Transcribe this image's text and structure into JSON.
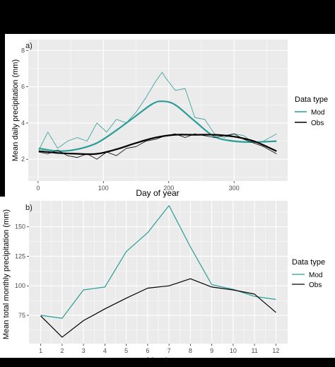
{
  "colors": {
    "mod": "#2a9d96",
    "obs": "#000000",
    "panel_bg": "#ebebeb",
    "grid_major": "#ffffff",
    "frame": "#000000"
  },
  "chart_data": [
    {
      "type": "line",
      "panel_label": "a)",
      "xlabel": "Day of year",
      "ylabel": "Mean daily precipitation (mm)",
      "xlim": [
        -15,
        382
      ],
      "ylim": [
        0.8,
        8.6
      ],
      "x_ticks": [
        0,
        100,
        200,
        300
      ],
      "y_ticks": [
        2,
        4,
        6,
        8
      ],
      "grid": true,
      "legend": {
        "title": "Data type",
        "placement": "right",
        "entries": [
          "Mod",
          "Obs"
        ]
      },
      "series": [
        {
          "name": "Mod",
          "x": [
            1,
            15,
            30,
            45,
            60,
            75,
            90,
            105,
            120,
            135,
            150,
            165,
            180,
            190,
            195,
            210,
            225,
            240,
            255,
            270,
            285,
            300,
            315,
            330,
            345,
            365
          ],
          "values": [
            2.5,
            3.5,
            2.6,
            3.0,
            3.2,
            3.0,
            4.0,
            3.5,
            4.2,
            4.0,
            4.6,
            5.4,
            6.3,
            6.8,
            6.5,
            5.8,
            5.9,
            4.3,
            4.2,
            3.4,
            3.2,
            3.4,
            3.3,
            2.9,
            3.0,
            3.4
          ],
          "smooth": {
            "x": [
              1,
              30,
              60,
              90,
              120,
              150,
              175,
              190,
              210,
              240,
              270,
              300,
              330,
              365
            ],
            "values": [
              2.6,
              2.45,
              2.55,
              2.9,
              3.6,
              4.4,
              5.05,
              5.2,
              5.0,
              4.1,
              3.25,
              3.0,
              2.95,
              3.0
            ]
          }
        },
        {
          "name": "Obs",
          "x": [
            1,
            15,
            30,
            45,
            60,
            75,
            90,
            105,
            120,
            135,
            150,
            165,
            180,
            195,
            210,
            225,
            240,
            255,
            270,
            285,
            300,
            315,
            330,
            345,
            365
          ],
          "values": [
            2.4,
            2.3,
            2.5,
            2.2,
            2.1,
            2.3,
            2.0,
            2.4,
            2.2,
            2.6,
            2.7,
            3.0,
            3.1,
            3.3,
            3.4,
            3.2,
            3.4,
            3.3,
            3.2,
            3.3,
            3.4,
            3.1,
            2.9,
            2.7,
            2.3
          ],
          "smooth": {
            "x": [
              1,
              30,
              60,
              90,
              120,
              150,
              180,
              210,
              240,
              270,
              300,
              330,
              365
            ],
            "values": [
              2.45,
              2.35,
              2.3,
              2.3,
              2.55,
              2.9,
              3.2,
              3.35,
              3.35,
              3.35,
              3.25,
              3.0,
              2.45
            ]
          }
        }
      ]
    },
    {
      "type": "line",
      "panel_label": "b)",
      "xlabel": "Month",
      "ylabel": "Mean total monthly precipitation (mm)",
      "xlim": [
        0.45,
        12.55
      ],
      "ylim": [
        51,
        172
      ],
      "x_ticks": [
        1,
        2,
        3,
        4,
        5,
        6,
        7,
        8,
        9,
        10,
        11,
        12
      ],
      "y_ticks": [
        75,
        100,
        125,
        150
      ],
      "grid": true,
      "legend": {
        "title": "Data type",
        "placement": "right",
        "entries": [
          "Mod",
          "Obs"
        ]
      },
      "series": [
        {
          "name": "Mod",
          "x": [
            1,
            2,
            3,
            4,
            5,
            6,
            7,
            8,
            9,
            10,
            11,
            12
          ],
          "values": [
            75,
            72.5,
            96.5,
            99,
            129,
            145,
            168,
            133,
            101,
            97,
            91,
            88.5
          ]
        },
        {
          "name": "Obs",
          "x": [
            1,
            2,
            3,
            4,
            5,
            6,
            7,
            8,
            9,
            10,
            11,
            12
          ],
          "values": [
            74.5,
            56.5,
            70.5,
            80.5,
            89.5,
            98,
            100,
            106,
            99,
            96.5,
            93,
            77.5
          ]
        }
      ]
    }
  ]
}
